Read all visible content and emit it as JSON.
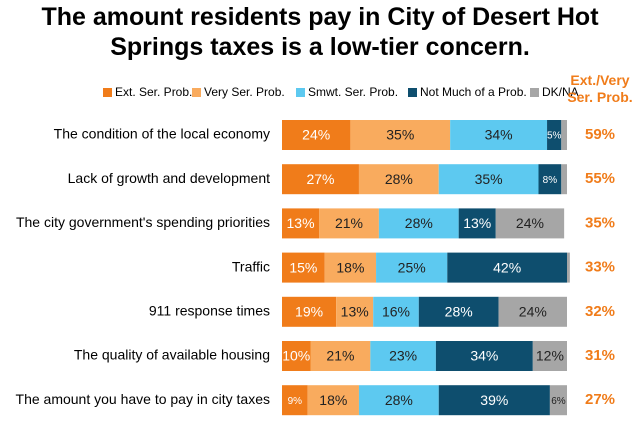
{
  "chart_data": {
    "type": "stacked-bar-horizontal",
    "title": "The amount residents pay in City of Desert Hot Springs taxes is a low-tier concern.",
    "categories": [
      "The condition of the local economy",
      "Lack of growth and development",
      "The city government's spending priorities",
      "Traffic",
      "911 response times",
      "The quality of available housing",
      "The amount you have to pay in city taxes"
    ],
    "series": [
      {
        "name": "Ext. Ser. Prob.",
        "color": "#f07c1a",
        "label_color": "#ffffff",
        "values": [
          24,
          27,
          13,
          15,
          19,
          10,
          9
        ],
        "value_labels": [
          "24%",
          "27%",
          "13%",
          "15%",
          "19%",
          "10%",
          "9%"
        ]
      },
      {
        "name": "Very Ser. Prob.",
        "color": "#f9ab5e",
        "label_color": "#222222",
        "values": [
          35,
          28,
          21,
          18,
          13,
          21,
          18
        ],
        "value_labels": [
          "35%",
          "28%",
          "21%",
          "18%",
          "13%",
          "21%",
          "18%"
        ]
      },
      {
        "name": "Smwt. Ser. Prob.",
        "color": "#5dc9f0",
        "label_color": "#222222",
        "values": [
          34,
          35,
          28,
          25,
          16,
          23,
          28
        ],
        "value_labels": [
          "34%",
          "35%",
          "28%",
          "25%",
          "16%",
          "23%",
          "28%"
        ]
      },
      {
        "name": "Not Much of a Prob.",
        "color": "#0e4e6e",
        "label_color": "#ffffff",
        "values": [
          5,
          8,
          13,
          42,
          28,
          34,
          39
        ],
        "value_labels": [
          "5%",
          "8%",
          "13%",
          "42%",
          "28%",
          "34%",
          "39%"
        ]
      },
      {
        "name": "DK/NA",
        "color": "#a6a6a6",
        "label_color": "#222222",
        "values": [
          2,
          2,
          24,
          1,
          24,
          12,
          6
        ],
        "value_labels": [
          null,
          null,
          "24%",
          null,
          "24%",
          "12%",
          "6%"
        ]
      }
    ],
    "totals": {
      "title": "Ext./Very Ser. Prob.",
      "color": "#f07c1a",
      "values": [
        59,
        55,
        35,
        33,
        32,
        31,
        27
      ],
      "value_labels": [
        "59%",
        "55%",
        "35%",
        "33%",
        "32%",
        "31%",
        "27%"
      ]
    }
  }
}
